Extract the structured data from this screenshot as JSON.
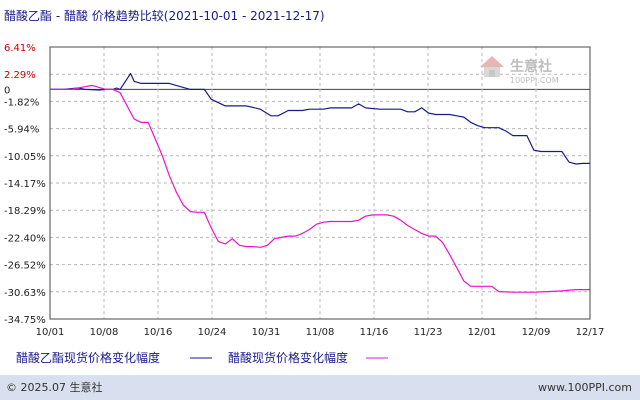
{
  "chart_data": {
    "type": "line",
    "title": "醋酸乙酯 - 醋酸 价格趋势比较(2021-10-01 - 2021-12-17)",
    "x_tick_labels": [
      "10/01",
      "10/08",
      "10/16",
      "10/24",
      "10/31",
      "11/08",
      "11/16",
      "11/23",
      "12/01",
      "12/09",
      "12/17"
    ],
    "y_tick_labels": [
      "6.41%",
      "2.29%",
      "0",
      "-1.82%",
      "-5.94%",
      "-10.05%",
      "-14.17%",
      "-18.29%",
      "-22.40%",
      "-26.52%",
      "-30.63%",
      "-34.75%"
    ],
    "y_tick_values": [
      6.41,
      2.29,
      0,
      -1.82,
      -5.94,
      -10.05,
      -14.17,
      -18.29,
      -22.4,
      -26.52,
      -30.63,
      -34.75
    ],
    "ylim": [
      -34.75,
      6.41
    ],
    "x_range_days": [
      0,
      77
    ],
    "grid": true,
    "legend_position": "bottom",
    "series": [
      {
        "name": "醋酸乙酯现货价格变化幅度",
        "color": "#1a1a8c",
        "points": [
          [
            0,
            0
          ],
          [
            2,
            0
          ],
          [
            4,
            0.2
          ],
          [
            5,
            0
          ],
          [
            7,
            -0.1
          ],
          [
            8,
            0
          ],
          [
            9,
            0
          ],
          [
            9.5,
            0.2
          ],
          [
            10,
            0
          ],
          [
            11.5,
            2.4
          ],
          [
            12,
            1.2
          ],
          [
            13,
            0.9
          ],
          [
            14,
            0.9
          ],
          [
            16,
            0.9
          ],
          [
            17,
            0.9
          ],
          [
            18,
            0.6
          ],
          [
            20,
            0
          ],
          [
            22,
            0
          ],
          [
            23,
            -1.5
          ],
          [
            25,
            -2.5
          ],
          [
            28,
            -2.5
          ],
          [
            30,
            -3
          ],
          [
            31.5,
            -4
          ],
          [
            32.5,
            -4
          ],
          [
            34,
            -3.2
          ],
          [
            36,
            -3.2
          ],
          [
            37,
            -3
          ],
          [
            39,
            -3
          ],
          [
            40,
            -2.8
          ],
          [
            42,
            -2.8
          ],
          [
            43,
            -2.8
          ],
          [
            44,
            -2.2
          ],
          [
            45,
            -2.8
          ],
          [
            47,
            -3
          ],
          [
            50,
            -3
          ],
          [
            51,
            -3.4
          ],
          [
            52,
            -3.4
          ],
          [
            53,
            -2.8
          ],
          [
            54,
            -3.6
          ],
          [
            55,
            -3.8
          ],
          [
            57,
            -3.8
          ],
          [
            58,
            -4
          ],
          [
            59,
            -4.2
          ],
          [
            60,
            -5
          ],
          [
            61,
            -5.5
          ],
          [
            62,
            -5.8
          ],
          [
            64,
            -5.8
          ],
          [
            65,
            -6.3
          ],
          [
            66,
            -7
          ],
          [
            67,
            -7
          ],
          [
            68,
            -7
          ],
          [
            69,
            -9.2
          ],
          [
            70,
            -9.4
          ],
          [
            71,
            -9.4
          ],
          [
            73,
            -9.4
          ],
          [
            74,
            -11
          ],
          [
            75,
            -11.3
          ],
          [
            76,
            -11.2
          ],
          [
            77,
            -11.2
          ]
        ]
      },
      {
        "name": "醋酸现货价格变化幅度",
        "color": "#ee11cc",
        "points": [
          [
            0,
            0
          ],
          [
            3,
            0
          ],
          [
            5,
            0.4
          ],
          [
            6,
            0.6
          ],
          [
            7,
            0.3
          ],
          [
            8,
            0
          ],
          [
            9,
            0
          ],
          [
            10,
            -0.5
          ],
          [
            11,
            -2.5
          ],
          [
            12,
            -4.5
          ],
          [
            13,
            -5
          ],
          [
            14,
            -5
          ],
          [
            15,
            -7.5
          ],
          [
            16,
            -10
          ],
          [
            17,
            -13
          ],
          [
            18,
            -15.5
          ],
          [
            19,
            -17.5
          ],
          [
            20,
            -18.5
          ],
          [
            21,
            -18.6
          ],
          [
            22,
            -18.6
          ],
          [
            23,
            -21
          ],
          [
            24,
            -23
          ],
          [
            25,
            -23.4
          ],
          [
            26,
            -22.6
          ],
          [
            27,
            -23.6
          ],
          [
            28,
            -23.8
          ],
          [
            29,
            -23.8
          ],
          [
            30,
            -23.9
          ],
          [
            31,
            -23.6
          ],
          [
            32,
            -22.6
          ],
          [
            33,
            -22.4
          ],
          [
            34,
            -22.2
          ],
          [
            35,
            -22.2
          ],
          [
            36,
            -21.8
          ],
          [
            37,
            -21.2
          ],
          [
            38,
            -20.4
          ],
          [
            39,
            -20.1
          ],
          [
            40,
            -20
          ],
          [
            43,
            -20
          ],
          [
            44,
            -19.8
          ],
          [
            45,
            -19.2
          ],
          [
            46,
            -19
          ],
          [
            48,
            -19
          ],
          [
            49,
            -19.2
          ],
          [
            50,
            -19.8
          ],
          [
            51,
            -20.6
          ],
          [
            52,
            -21.2
          ],
          [
            53,
            -21.8
          ],
          [
            54,
            -22.2
          ],
          [
            55,
            -22.2
          ],
          [
            56,
            -23.2
          ],
          [
            57,
            -25
          ],
          [
            58,
            -27
          ],
          [
            59,
            -29
          ],
          [
            60,
            -29.8
          ],
          [
            62,
            -29.8
          ],
          [
            63,
            -29.8
          ],
          [
            64,
            -30.6
          ],
          [
            66,
            -30.7
          ],
          [
            69,
            -30.7
          ],
          [
            71,
            -30.6
          ],
          [
            73,
            -30.5
          ],
          [
            75,
            -30.3
          ],
          [
            77,
            -30.3
          ]
        ]
      }
    ]
  },
  "logo": {
    "name": "生意社",
    "sub": "100PPI.COM"
  },
  "footer": {
    "copyright": "© 2025.07 生意社",
    "url": "www.100PPI.com"
  },
  "colors": {
    "axis": "#4a4a4a",
    "zero_line": "#404040",
    "footer_bg": "#d9dfee"
  }
}
